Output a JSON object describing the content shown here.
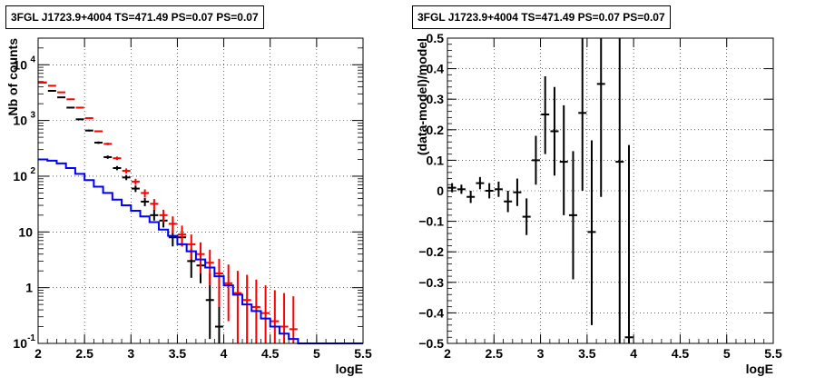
{
  "chart_data": [
    {
      "type": "line",
      "title": "3FGL J1723.9+4004 TS=471.49 PS=0.07 PS=0.07",
      "xlabel": "logE",
      "ylabel": "Nb of counts",
      "xlim": [
        2,
        5.5
      ],
      "ylim": [
        0.1,
        30000
      ],
      "yscale": "log",
      "grid": true,
      "xticks": [
        "2",
        "2.5",
        "3",
        "3.5",
        "4",
        "4.5",
        "5",
        "5.5"
      ],
      "ymajor": [
        {
          "value": 0.1,
          "label": "10",
          "exp": "-1"
        },
        {
          "value": 1,
          "label": "1",
          "exp": ""
        },
        {
          "value": 10,
          "label": "10",
          "exp": ""
        },
        {
          "value": 100,
          "label": "10",
          "exp": "2"
        },
        {
          "value": 1000,
          "label": "10",
          "exp": "3"
        },
        {
          "value": 10000,
          "label": "10",
          "exp": "4"
        }
      ],
      "series": [
        {
          "kind": "points",
          "color": "#000000",
          "x": [
            2.05,
            2.15,
            2.25,
            2.35,
            2.45,
            2.55,
            2.65,
            2.75,
            2.85,
            2.95,
            3.05,
            3.15,
            3.25,
            3.35,
            3.45,
            3.55,
            3.65,
            3.75,
            3.85,
            3.95
          ],
          "y": [
            4800,
            3400,
            2600,
            1700,
            1050,
            660,
            400,
            220,
            140,
            95,
            60,
            35,
            20,
            16,
            8,
            8,
            3,
            2.5,
            0.6,
            0.2
          ],
          "ylo": [
            4730,
            3340,
            2550,
            1660,
            1020,
            635,
            380,
            205,
            128,
            85,
            52,
            29,
            16,
            12,
            5.5,
            5.5,
            1.5,
            1.2,
            0.12,
            0.1
          ],
          "yhi": [
            4870,
            3460,
            2650,
            1740,
            1080,
            685,
            420,
            235,
            152,
            105,
            68,
            41,
            25,
            20,
            11,
            11,
            5,
            4.2,
            1.8,
            1.5
          ]
        },
        {
          "kind": "points",
          "color": "#ff0000",
          "x": [
            2.05,
            2.15,
            2.25,
            2.35,
            2.45,
            2.55,
            2.65,
            2.75,
            2.85,
            2.95,
            3.05,
            3.15,
            3.25,
            3.35,
            3.45,
            3.55,
            3.65,
            3.75,
            3.85,
            3.95,
            4.05,
            4.15,
            4.25,
            4.35,
            4.45,
            4.55,
            4.65,
            4.75
          ],
          "y": [
            4800,
            4200,
            3200,
            2400,
            1700,
            1100,
            640,
            380,
            210,
            125,
            80,
            50,
            32,
            20,
            14,
            9,
            6,
            4,
            2.8,
            1.8,
            1.2,
            0.8,
            0.6,
            0.45,
            0.35,
            0.25,
            0.2,
            0.18
          ],
          "ylo": [
            4740,
            4140,
            3150,
            2360,
            1670,
            1070,
            620,
            360,
            195,
            112,
            70,
            42,
            25,
            15,
            9.5,
            5.5,
            3.2,
            1.8,
            1.1,
            0.45,
            0.25,
            0.1,
            0.1,
            0.1,
            0.1,
            0.1,
            0.1,
            0.1
          ],
          "yhi": [
            4860,
            4260,
            3250,
            2440,
            1730,
            1130,
            660,
            400,
            225,
            138,
            90,
            58,
            39,
            25,
            19,
            13,
            9,
            6.5,
            4.8,
            3.3,
            2.6,
            2,
            1.7,
            1.4,
            1.1,
            0.9,
            0.8,
            0.7
          ]
        },
        {
          "kind": "step",
          "color": "#0000ff",
          "edges": [
            2.0,
            2.1,
            2.2,
            2.3,
            2.4,
            2.5,
            2.6,
            2.7,
            2.8,
            2.9,
            3.0,
            3.1,
            3.2,
            3.3,
            3.4,
            3.5,
            3.6,
            3.7,
            3.8,
            3.9,
            4.0,
            4.1,
            4.2,
            4.3,
            4.4,
            4.5,
            4.6,
            4.7,
            4.8,
            5.0,
            5.5
          ],
          "values": [
            200,
            190,
            170,
            140,
            110,
            85,
            65,
            50,
            38,
            30,
            24,
            19,
            15,
            11,
            8.5,
            6,
            4.5,
            3.2,
            2.3,
            1.6,
            1.1,
            0.75,
            0.5,
            0.38,
            0.28,
            0.2,
            0.15,
            0.12,
            0.1,
            0.1
          ]
        }
      ]
    },
    {
      "type": "scatter",
      "title": "3FGL J1723.9+4004 TS=471.49 PS=0.07 PS=0.07",
      "xlabel": "logE",
      "ylabel": "(data-model)/model",
      "xlim": [
        2,
        5.5
      ],
      "ylim": [
        -0.5,
        0.5
      ],
      "grid": true,
      "xticks": [
        "2",
        "2.5",
        "3",
        "3.5",
        "4",
        "4.5",
        "5",
        "5.5"
      ],
      "yticks": [
        "−0.5",
        "−0.4",
        "−0.3",
        "−0.2",
        "−0.1",
        "0",
        "0.1",
        "0.2",
        "0.3",
        "0.4",
        "0.5"
      ],
      "series": [
        {
          "color": "#000000",
          "x": [
            2.05,
            2.15,
            2.25,
            2.35,
            2.45,
            2.55,
            2.65,
            2.75,
            2.85,
            2.95,
            3.05,
            3.15,
            3.25,
            3.35,
            3.45,
            3.55,
            3.65,
            3.85,
            3.95
          ],
          "y": [
            0.01,
            0.005,
            -0.02,
            0.025,
            0.0,
            0.005,
            -0.035,
            -0.005,
            -0.085,
            0.1,
            0.25,
            0.195,
            0.095,
            -0.08,
            0.255,
            -0.135,
            0.35,
            0.095,
            -0.48
          ],
          "ylo": [
            -0.005,
            -0.01,
            -0.04,
            0.005,
            -0.025,
            -0.02,
            -0.07,
            -0.05,
            -0.145,
            0.02,
            0.12,
            0.05,
            -0.08,
            -0.29,
            0.0,
            -0.44,
            -0.02,
            -0.5,
            -0.5
          ],
          "yhi": [
            0.025,
            0.02,
            0.0,
            0.045,
            0.025,
            0.03,
            0.0,
            0.04,
            -0.025,
            0.18,
            0.375,
            0.34,
            0.28,
            0.13,
            0.5,
            0.165,
            0.5,
            0.5,
            0.15
          ]
        }
      ]
    }
  ]
}
